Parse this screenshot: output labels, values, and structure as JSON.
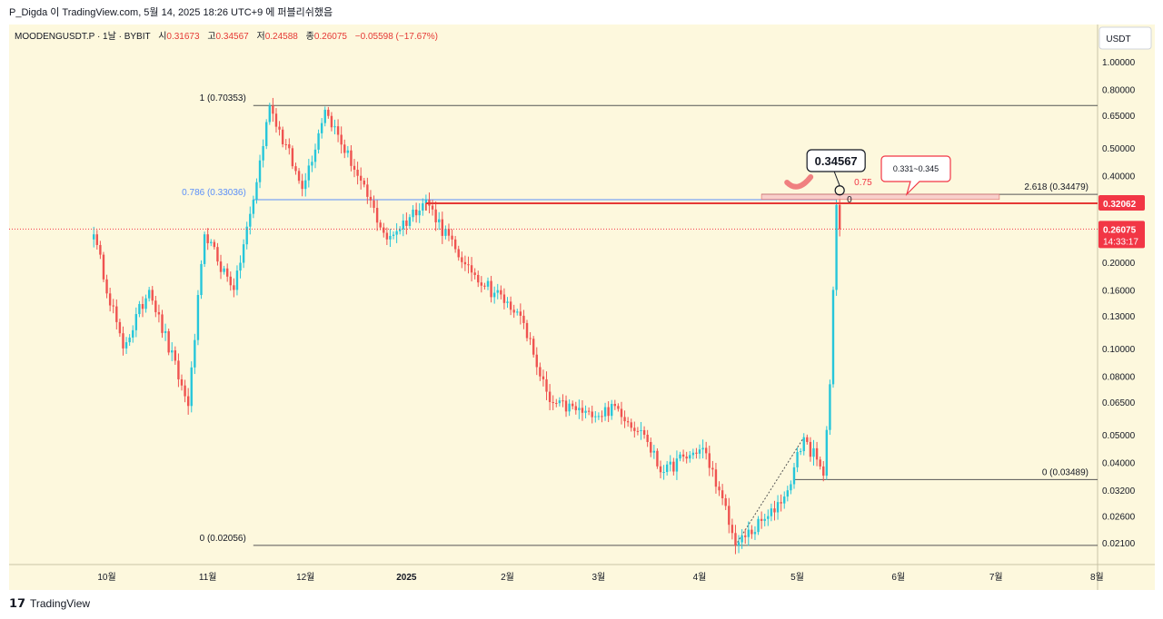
{
  "header": {
    "publish_line": "P_Digda 이 TradingView.com, 5월 14, 2025 18:26 UTC+9 에 퍼블리쉬했음"
  },
  "legend": {
    "symbol_line": "MOODENGUSDT.P · 1날 · BYBIT",
    "open_label": "시",
    "open_value": "0.31673",
    "high_label": "고",
    "high_value": "0.34567",
    "low_label": "저",
    "low_value": "0.24588",
    "close_label": "종",
    "close_value": "0.26075",
    "change": "−0.05598 (−17.67%)"
  },
  "price_axis": {
    "currency_button": "USDT",
    "ticks": [
      "1.00000",
      "0.80000",
      "0.65000",
      "0.50000",
      "0.40000",
      "0.32000",
      "0.26000",
      "0.20000",
      "0.16000",
      "0.13000",
      "0.10000",
      "0.08000",
      "0.06500",
      "0.05000",
      "0.04000",
      "0.03200",
      "0.02600",
      "0.02100"
    ],
    "level_badge": "0.32062",
    "last_price_badge": "0.26075",
    "countdown": "14:33:17"
  },
  "time_axis": {
    "ticks": [
      "10월",
      "11월",
      "12월",
      "2025",
      "2월",
      "3월",
      "4월",
      "5월",
      "6월",
      "7월",
      "8월"
    ]
  },
  "annotations": {
    "fib_main_top": "1 (0.70353)",
    "fib_main_786": "0.786 (0.33036)",
    "fib_main_zero": "0 (0.02056)",
    "fib_ext_level": "2.618 (0.34479)",
    "fib_ext_zero": "0 (0.03489)",
    "fib_ext_075": "0.75",
    "fib_ext_0": "0",
    "high_callout": "0.34567",
    "zone_callout": "0.331~0.345"
  },
  "footer": {
    "brand": "TradingView"
  },
  "colors": {
    "background": "#fdf8dd",
    "up": "#26c6da",
    "down": "#ef5350",
    "fib_blue": "#5b8ff9",
    "fib_line": "#555555",
    "level_red": "#e53935",
    "zone_fill": "#f8c9c9",
    "badge_red": "#f23645"
  },
  "chart_data": {
    "type": "candlestick",
    "symbol": "MOODENGUSDT.P",
    "interval": "1날",
    "exchange": "BYBIT",
    "scale": "log",
    "ylim": [
      0.0195,
      1.15
    ],
    "xlabels": [
      "10월",
      "11월",
      "12월",
      "2025",
      "2월",
      "3월",
      "4월",
      "5월",
      "6월",
      "7월",
      "8월"
    ],
    "key_points": [
      {
        "date": "2024-09-27",
        "price": 0.25
      },
      {
        "date": "2024-10-06",
        "price": 0.1
      },
      {
        "date": "2024-10-14",
        "price": 0.16
      },
      {
        "date": "2024-10-26",
        "price": 0.063
      },
      {
        "date": "2024-10-31",
        "price": 0.25
      },
      {
        "date": "2024-11-09",
        "price": 0.16
      },
      {
        "date": "2024-11-15",
        "price": 0.33
      },
      {
        "date": "2024-11-20",
        "price": 0.70353
      },
      {
        "date": "2024-11-30",
        "price": 0.36
      },
      {
        "date": "2024-12-07",
        "price": 0.68
      },
      {
        "date": "2024-12-17",
        "price": 0.4
      },
      {
        "date": "2024-12-26",
        "price": 0.24
      },
      {
        "date": "2025-01-07",
        "price": 0.33
      },
      {
        "date": "2025-01-18",
        "price": 0.2
      },
      {
        "date": "2025-02-05",
        "price": 0.13
      },
      {
        "date": "2025-02-14",
        "price": 0.065
      },
      {
        "date": "2025-02-28",
        "price": 0.058
      },
      {
        "date": "2025-03-06",
        "price": 0.063
      },
      {
        "date": "2025-03-15",
        "price": 0.05
      },
      {
        "date": "2025-03-20",
        "price": 0.037
      },
      {
        "date": "2025-04-02",
        "price": 0.045
      },
      {
        "date": "2025-04-07",
        "price": 0.032
      },
      {
        "date": "2025-04-12",
        "price": 0.02056
      },
      {
        "date": "2025-04-22",
        "price": 0.026
      },
      {
        "date": "2025-04-28",
        "price": 0.032
      },
      {
        "date": "2025-05-03",
        "price": 0.049
      },
      {
        "date": "2025-05-09",
        "price": 0.036
      },
      {
        "date": "2025-05-11",
        "price": 0.075
      },
      {
        "date": "2025-05-12",
        "price": 0.16
      },
      {
        "date": "2025-05-13",
        "price": 0.31673
      },
      {
        "date": "2025-05-14",
        "price": 0.26075
      }
    ],
    "last_candle": {
      "date": "2025-05-14",
      "open": 0.31673,
      "high": 0.34567,
      "low": 0.24588,
      "close": 0.26075,
      "change": -0.05598,
      "change_pct": -17.67
    },
    "fib_retracement_1": {
      "1": 0.70353,
      "0.786": 0.33036,
      "0": 0.02056
    },
    "fib_extension_2": {
      "2.618": 0.34479,
      "0": 0.03489
    },
    "horizontal_levels": [
      0.32062
    ],
    "highlight_zone": [
      0.331,
      0.345
    ],
    "last_price": 0.26075
  }
}
